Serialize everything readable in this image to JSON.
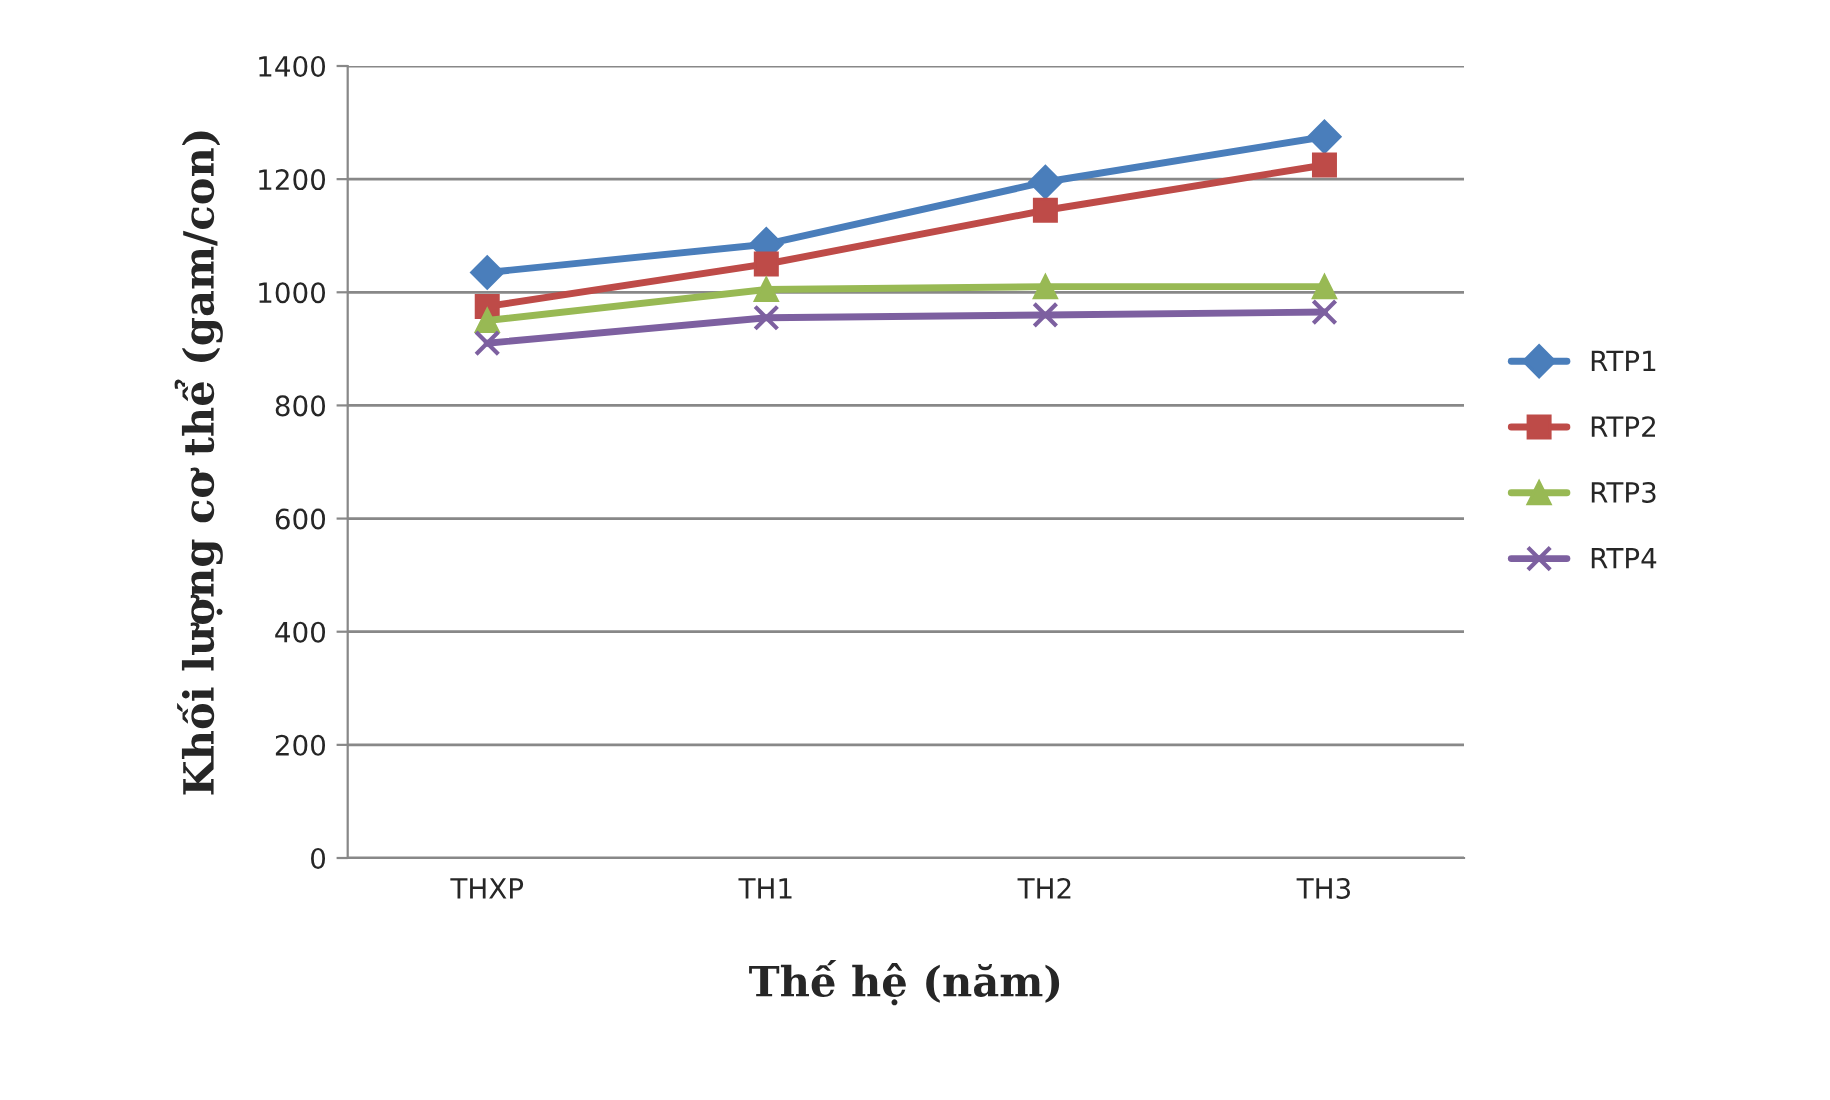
{
  "chart_data": {
    "type": "line",
    "xlabel": "Thế hệ (năm)",
    "ylabel": "Khối lượng cơ thể (gam/con)",
    "categories": [
      "THXP",
      "TH1",
      "TH2",
      "TH3"
    ],
    "series": [
      {
        "name": "RTP1",
        "color": "#4a7ebb",
        "marker": "diamond",
        "values": [
          1035,
          1085,
          1195,
          1275
        ]
      },
      {
        "name": "RTP2",
        "color": "#be4b48",
        "marker": "square",
        "values": [
          975,
          1050,
          1145,
          1225
        ]
      },
      {
        "name": "RTP3",
        "color": "#98b954",
        "marker": "triangle",
        "values": [
          950,
          1005,
          1010,
          1010
        ]
      },
      {
        "name": "RTP4",
        "color": "#7d60a0",
        "marker": "cross",
        "values": [
          910,
          955,
          960,
          965
        ]
      }
    ],
    "ylim": [
      0,
      1400
    ],
    "yticks": [
      0,
      200,
      400,
      600,
      800,
      1000,
      1200,
      1400
    ],
    "grid": "y",
    "legend": "right"
  }
}
